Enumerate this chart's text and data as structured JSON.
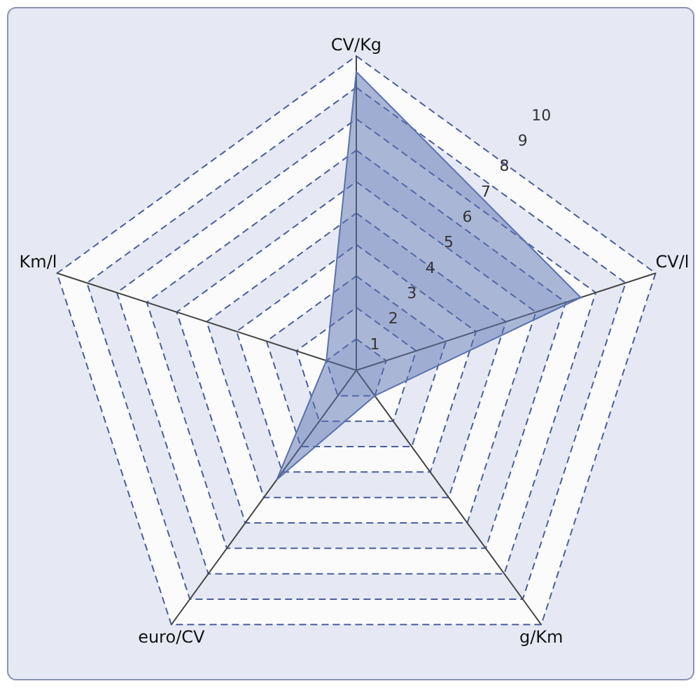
{
  "chart_data": {
    "type": "radar",
    "categories": [
      "CV/Kg",
      "CV/l",
      "g/Km",
      "euro/CV",
      "Km/l"
    ],
    "series": [
      {
        "color": "#5a72b0",
        "values": [
          9.5,
          7.5,
          1,
          4.3,
          1
        ]
      }
    ],
    "ylim": [
      0,
      10
    ],
    "yticks": [
      1,
      2,
      3,
      4,
      5,
      6,
      7,
      8,
      9,
      10
    ],
    "grid": true
  }
}
